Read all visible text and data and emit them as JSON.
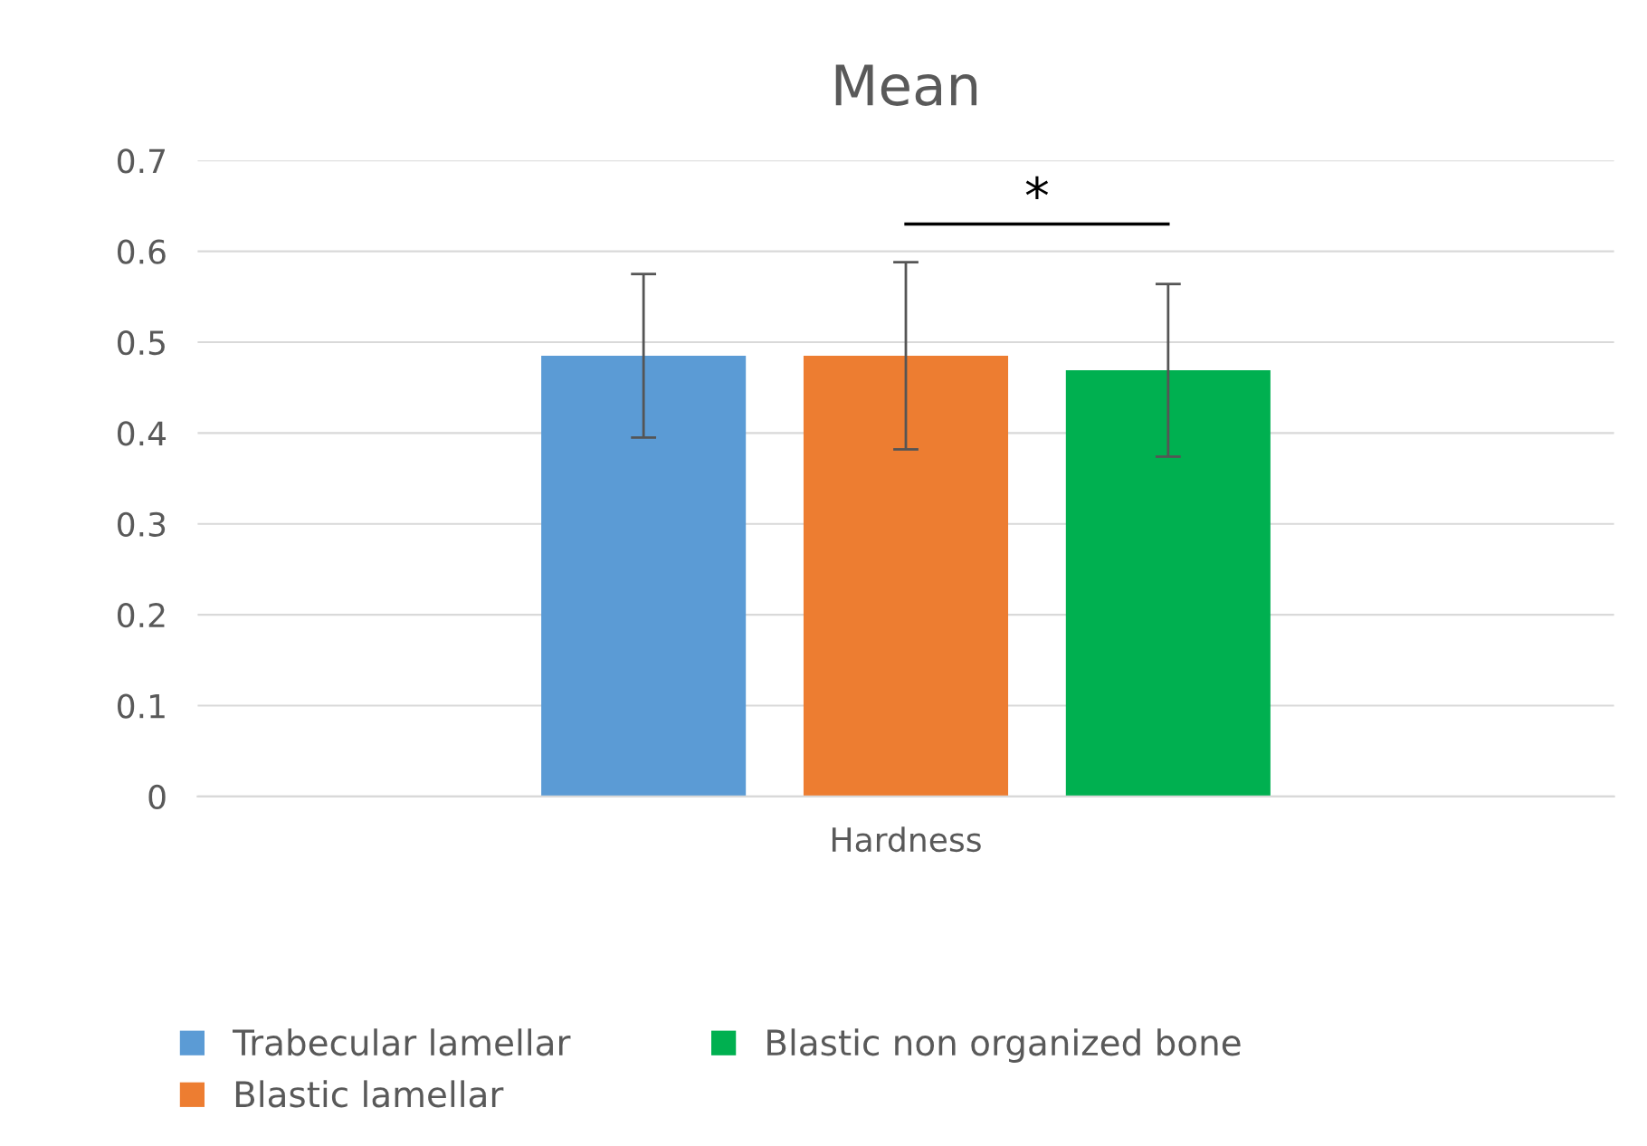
{
  "chart_data": {
    "type": "bar",
    "title": "Mean",
    "categories": [
      "Hardness"
    ],
    "series": [
      {
        "name": "Trabecular lamellar",
        "color": "#5b9bd5",
        "values": [
          0.485
        ],
        "errors": [
          0.09
        ]
      },
      {
        "name": "Blastic lamellar",
        "color": "#ed7d31",
        "values": [
          0.485
        ],
        "errors": [
          0.103
        ]
      },
      {
        "name": "Blastic non organized bone",
        "color": "#00b050",
        "values": [
          0.469
        ],
        "errors": [
          0.095
        ]
      }
    ],
    "ylim": [
      0,
      0.7
    ],
    "yticks": [
      0,
      0.1,
      0.2,
      0.3,
      0.4,
      0.5,
      0.6,
      0.7
    ],
    "grid": "y",
    "legend": "bottom",
    "annotations": [
      "*"
    ]
  }
}
